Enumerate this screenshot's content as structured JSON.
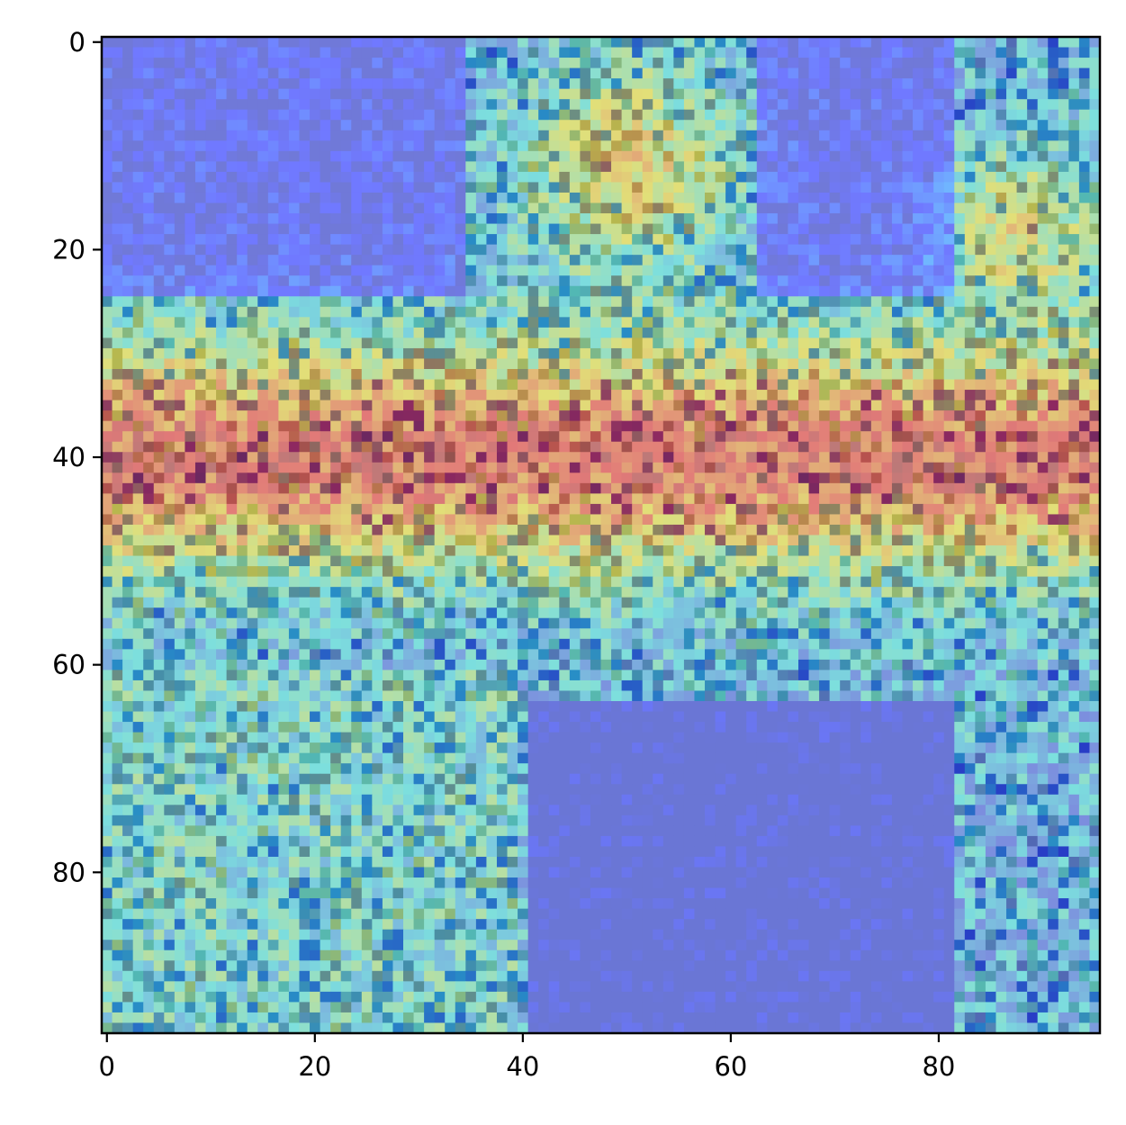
{
  "chart_data": {
    "type": "heatmap",
    "title": "",
    "xlabel": "",
    "ylabel": "",
    "image_size": [
      96,
      96
    ],
    "xlim": [
      -0.5,
      95.5
    ],
    "ylim": [
      95.5,
      -0.5
    ],
    "y_axis_inverted": true,
    "x_ticks": [
      0,
      20,
      40,
      60,
      80
    ],
    "y_ticks": [
      0,
      20,
      40,
      60,
      80
    ],
    "x_tick_labels": [
      "0",
      "20",
      "40",
      "60",
      "80"
    ],
    "y_tick_labels": [
      "0",
      "20",
      "40",
      "60",
      "80"
    ],
    "colormap": "jet overlay on photograph",
    "overlay_alpha": 0.4,
    "colors": {
      "low": "#00007f",
      "mid_low": "#00bfff",
      "mid": "#7fff7f",
      "mid_high": "#ffbf00",
      "high": "#bf0000"
    },
    "description_regions": [
      {
        "region": "upper-left sky",
        "level": "low"
      },
      {
        "region": "upper-right sky",
        "level": "low"
      },
      {
        "region": "central top cluster",
        "x": [
          38,
          60
        ],
        "y": [
          0,
          25
        ],
        "level": "high"
      },
      {
        "region": "horizontal band",
        "x": [
          0,
          95
        ],
        "y": [
          25,
          55
        ],
        "level": "high"
      },
      {
        "region": "lower-left cluster",
        "x": [
          0,
          40
        ],
        "y": [
          60,
          95
        ],
        "level": "mixed"
      },
      {
        "region": "lower-center smooth area",
        "x": [
          40,
          82
        ],
        "y": [
          63,
          95
        ],
        "level": "low"
      },
      {
        "region": "right column",
        "x": [
          83,
          90
        ],
        "y": [
          60,
          95
        ],
        "level": "mixed"
      }
    ],
    "grid": false,
    "legend": "none"
  }
}
